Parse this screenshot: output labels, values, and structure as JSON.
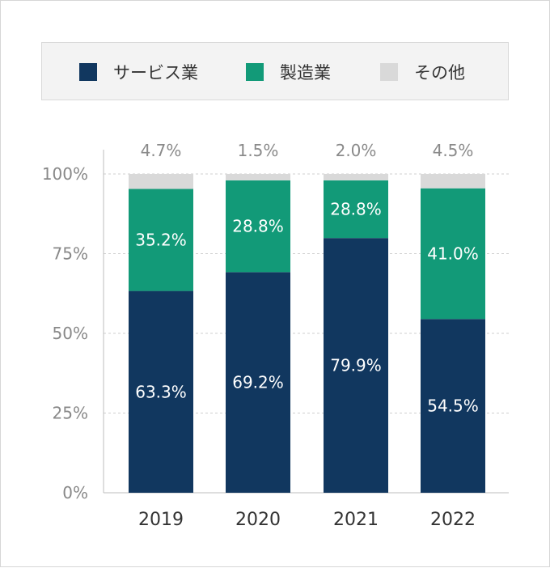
{
  "colors": {
    "service": "#11375f",
    "manufacturing": "#129a78",
    "other": "#d9d9d9",
    "grid": "#cfcfcf",
    "axis": "#bdbdbd"
  },
  "legend": {
    "items": [
      {
        "label": "サービス業",
        "color": "#11375f"
      },
      {
        "label": "製造業",
        "color": "#129a78"
      },
      {
        "label": "その他",
        "color": "#d9d9d9"
      }
    ]
  },
  "chart_data": {
    "type": "bar",
    "stacked": true,
    "categories": [
      "2019",
      "2020",
      "2021",
      "2022"
    ],
    "series": [
      {
        "name": "サービス業",
        "values": [
          63.3,
          69.2,
          79.9,
          54.5
        ],
        "labels": [
          "63.3%",
          "69.2%",
          "79.9%",
          "54.5%"
        ]
      },
      {
        "name": "製造業",
        "values": [
          35.2,
          28.8,
          28.8,
          41.0
        ],
        "labels": [
          "35.2%",
          "28.8%",
          "28.8%",
          "41.0%"
        ]
      },
      {
        "name": "その他",
        "values": [
          4.7,
          1.5,
          2.0,
          4.5
        ],
        "labels": [
          "4.7%",
          "1.5%",
          "2.0%",
          "4.5%"
        ]
      }
    ],
    "y_ticks": [
      "0%",
      "25%",
      "50%",
      "75%",
      "100%"
    ],
    "ylim": [
      0,
      100
    ],
    "grid": true,
    "legend_position": "top"
  }
}
